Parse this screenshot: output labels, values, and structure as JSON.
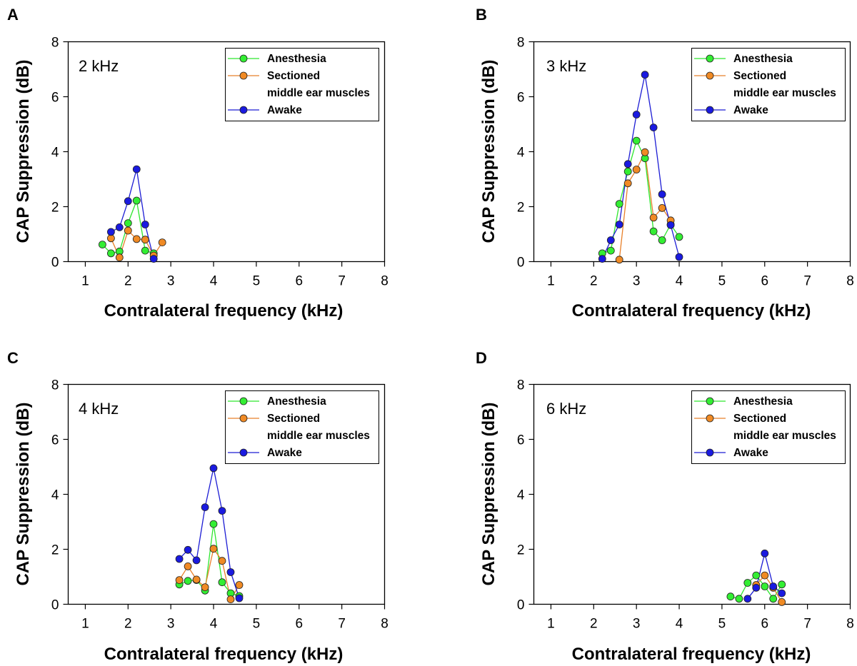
{
  "figure": {
    "colors": {
      "anesthesia_line": "#2ee62e",
      "anesthesia_marker": "#33ee33",
      "sectioned_line": "#e8802a",
      "sectioned_marker": "#f08a24",
      "awake_line": "#1c1cd4",
      "awake_marker": "#1a1ae0",
      "axis": "#000000"
    }
  },
  "chart_data": [
    {
      "panel": "A",
      "type": "line",
      "annotation": "2 kHz",
      "xlabel": "Contralateral frequency (kHz)",
      "ylabel": "CAP Suppression (dB)",
      "xlim": [
        0.6,
        8
      ],
      "ylim": [
        0,
        8
      ],
      "x_ticks": [
        "1",
        "2",
        "3",
        "4",
        "5",
        "6",
        "7",
        "8"
      ],
      "y_ticks": [
        "0",
        "2",
        "4",
        "6",
        "8"
      ],
      "legend": [
        "Anesthesia",
        "Sectioned",
        "middle ear muscles",
        "Awake"
      ],
      "series": [
        {
          "name": "Anesthesia",
          "x": [
            1.4,
            1.6,
            1.8,
            2.0,
            2.2,
            2.4,
            2.6
          ],
          "y": [
            0.62,
            0.3,
            0.37,
            1.4,
            2.22,
            0.4,
            0.3
          ]
        },
        {
          "name": "Sectioned middle ear muscles",
          "x": [
            1.6,
            1.8,
            2.0,
            2.2,
            2.4,
            2.6,
            2.8
          ],
          "y": [
            0.85,
            0.15,
            1.13,
            0.82,
            0.8,
            0.22,
            0.7
          ]
        },
        {
          "name": "Awake",
          "x": [
            1.6,
            1.8,
            2.0,
            2.2,
            2.4,
            2.6
          ],
          "y": [
            1.08,
            1.25,
            2.2,
            3.36,
            1.35,
            0.1
          ]
        }
      ]
    },
    {
      "panel": "B",
      "type": "line",
      "annotation": "3 kHz",
      "xlabel": "Contralateral frequency (kHz)",
      "ylabel": "CAP Suppression (dB)",
      "xlim": [
        0.6,
        8
      ],
      "ylim": [
        0,
        8
      ],
      "x_ticks": [
        "1",
        "2",
        "3",
        "4",
        "5",
        "6",
        "7",
        "8"
      ],
      "y_ticks": [
        "0",
        "2",
        "4",
        "6",
        "8"
      ],
      "legend": [
        "Anesthesia",
        "Sectioned",
        "middle ear muscles",
        "Awake"
      ],
      "series": [
        {
          "name": "Anesthesia",
          "x": [
            2.2,
            2.4,
            2.6,
            2.8,
            3.0,
            3.2,
            3.4,
            3.6,
            3.8,
            4.0
          ],
          "y": [
            0.3,
            0.4,
            2.1,
            3.28,
            4.4,
            3.76,
            1.1,
            0.78,
            1.35,
            0.9
          ]
        },
        {
          "name": "Sectioned middle ear muscles",
          "x": [
            2.6,
            2.8,
            3.0,
            3.2,
            3.4,
            3.6,
            3.8
          ],
          "y": [
            0.07,
            2.85,
            3.35,
            3.98,
            1.6,
            1.95,
            1.5
          ]
        },
        {
          "name": "Awake",
          "x": [
            2.2,
            2.4,
            2.6,
            2.8,
            3.0,
            3.2,
            3.4,
            3.6,
            3.8,
            4.0
          ],
          "y": [
            0.1,
            0.78,
            1.35,
            3.55,
            5.35,
            6.8,
            4.88,
            2.45,
            1.33,
            0.17
          ]
        }
      ]
    },
    {
      "panel": "C",
      "type": "line",
      "annotation": "4 kHz",
      "xlabel": "Contralateral frequency (kHz)",
      "ylabel": "CAP Suppression (dB)",
      "xlim": [
        0.6,
        8
      ],
      "ylim": [
        0,
        8
      ],
      "x_ticks": [
        "1",
        "2",
        "3",
        "4",
        "5",
        "6",
        "7",
        "8"
      ],
      "y_ticks": [
        "0",
        "2",
        "4",
        "6",
        "8"
      ],
      "legend": [
        "Anesthesia",
        "Sectioned",
        "middle ear muscles",
        "Awake"
      ],
      "series": [
        {
          "name": "Anesthesia",
          "x": [
            3.2,
            3.4,
            3.6,
            3.8,
            4.0,
            4.2,
            4.4,
            4.6
          ],
          "y": [
            0.72,
            0.85,
            0.88,
            0.5,
            2.92,
            0.8,
            0.4,
            0.3
          ]
        },
        {
          "name": "Sectioned middle ear muscles",
          "x": [
            3.2,
            3.4,
            3.6,
            3.8,
            4.0,
            4.2,
            4.4,
            4.6
          ],
          "y": [
            0.88,
            1.38,
            0.9,
            0.62,
            2.02,
            1.58,
            0.18,
            0.7
          ]
        },
        {
          "name": "Awake",
          "x": [
            3.2,
            3.4,
            3.6,
            3.8,
            4.0,
            4.2,
            4.4,
            4.6
          ],
          "y": [
            1.65,
            1.98,
            1.6,
            3.53,
            4.95,
            3.4,
            1.17,
            0.22
          ]
        }
      ]
    },
    {
      "panel": "D",
      "type": "line",
      "annotation": "6 kHz",
      "xlabel": "Contralateral frequency (kHz)",
      "ylabel": "CAP Suppression (dB)",
      "xlim": [
        0.6,
        8
      ],
      "ylim": [
        0,
        8
      ],
      "x_ticks": [
        "1",
        "2",
        "3",
        "4",
        "5",
        "6",
        "7",
        "8"
      ],
      "y_ticks": [
        "0",
        "2",
        "4",
        "6",
        "8"
      ],
      "legend": [
        "Anesthesia",
        "Sectioned",
        "middle ear muscles",
        "Awake"
      ],
      "series": [
        {
          "name": "Anesthesia",
          "x": [
            5.2,
            5.4,
            5.6,
            5.8,
            6.0,
            6.2,
            6.4
          ],
          "y": [
            0.28,
            0.2,
            0.78,
            1.05,
            0.65,
            0.2,
            0.72
          ]
        },
        {
          "name": "Sectioned middle ear muscles",
          "x": [
            5.8,
            6.0,
            6.2,
            6.4
          ],
          "y": [
            0.7,
            1.05,
            0.6,
            0.08
          ]
        },
        {
          "name": "Awake",
          "x": [
            5.6,
            5.8,
            6.0,
            6.2,
            6.4
          ],
          "y": [
            0.2,
            0.6,
            1.85,
            0.65,
            0.4
          ]
        }
      ]
    }
  ]
}
